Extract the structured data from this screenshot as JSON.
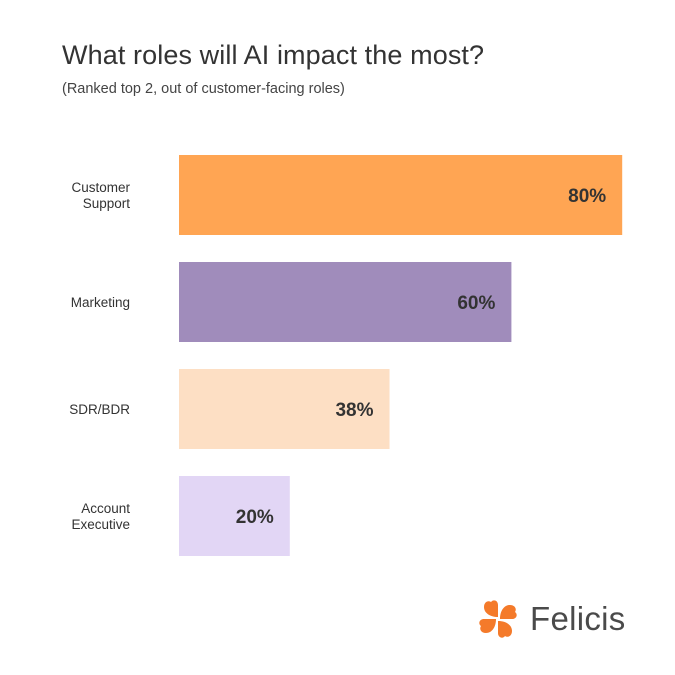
{
  "title": "What roles will AI impact the most?",
  "subtitle": "(Ranked top 2, out of customer-facing roles)",
  "brand": {
    "name": "Felicis",
    "logo_icon": "clover-logo-icon",
    "color": "#F47A2A"
  },
  "chart_data": {
    "type": "bar",
    "orientation": "horizontal",
    "categories": [
      [
        "Customer",
        "Support"
      ],
      [
        "Marketing"
      ],
      [
        "SDR/BDR"
      ],
      [
        "Account",
        "Executive"
      ]
    ],
    "values": [
      80,
      60,
      38,
      20
    ],
    "value_labels": [
      "80%",
      "60%",
      "38%",
      "20%"
    ],
    "colors": [
      "#FFA553",
      "#A08CBB",
      "#FDDFC4",
      "#E2D6F5"
    ],
    "xlim": [
      0,
      100
    ],
    "grid": false,
    "legend": "none"
  }
}
